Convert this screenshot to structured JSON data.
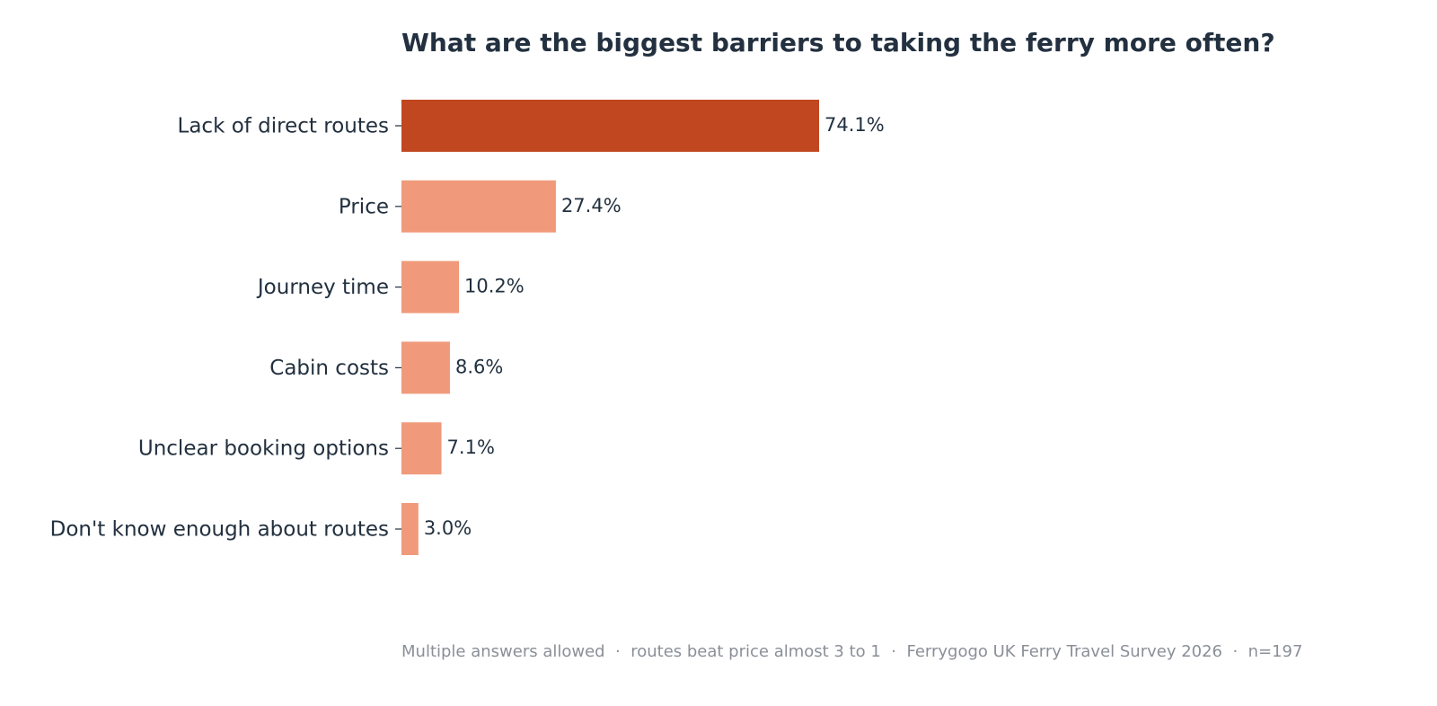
{
  "chart_data": {
    "type": "bar",
    "orientation": "horizontal",
    "title": "What are the biggest barriers to taking the ferry more often?",
    "categories": [
      "Lack of direct routes",
      "Price",
      "Journey time",
      "Cabin costs",
      "Unclear booking options",
      "Don't know enough about routes"
    ],
    "values": [
      74.1,
      27.4,
      10.2,
      8.6,
      7.1,
      3.0
    ],
    "value_labels": [
      "74.1%",
      "27.4%",
      "10.2%",
      "8.6%",
      "7.1%",
      "3.0%"
    ],
    "colors": [
      "#c0471f",
      "#f09a7b",
      "#f09a7b",
      "#f09a7b",
      "#f09a7b",
      "#f09a7b"
    ],
    "footnote": "Multiple answers allowed  ·  routes beat price almost 3 to 1  ·  Ferrygogo UK Ferry Travel Survey 2026  ·  n=197"
  }
}
